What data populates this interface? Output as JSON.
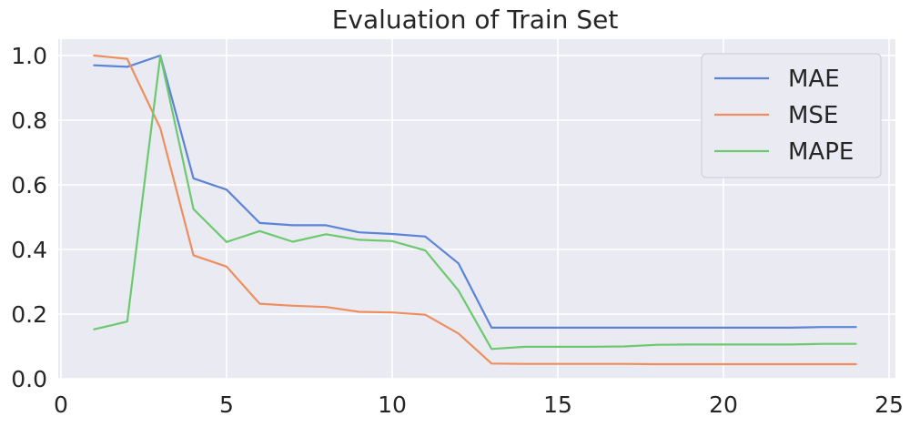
{
  "chart_data": {
    "type": "line",
    "title": "Evaluation of Train Set",
    "xlabel": "",
    "ylabel": "",
    "xlim": [
      0,
      25
    ],
    "ylim": [
      0,
      1.05
    ],
    "xticks": [
      0,
      5,
      10,
      15,
      20,
      25
    ],
    "yticks": [
      0.0,
      0.2,
      0.4,
      0.6,
      0.8,
      1.0
    ],
    "xtick_labels": [
      "0",
      "5",
      "10",
      "15",
      "20",
      "25"
    ],
    "ytick_labels": [
      "0.0",
      "0.2",
      "0.4",
      "0.6",
      "0.8",
      "1.0"
    ],
    "grid": true,
    "legend_position": "top-right",
    "x": [
      1,
      2,
      3,
      4,
      5,
      6,
      7,
      8,
      9,
      10,
      11,
      12,
      13,
      14,
      15,
      16,
      17,
      18,
      19,
      20,
      21,
      22,
      23,
      24
    ],
    "series": [
      {
        "name": "MAE",
        "color": "#5b83d6",
        "values": [
          0.97,
          0.965,
          1.0,
          0.62,
          0.585,
          0.482,
          0.475,
          0.475,
          0.453,
          0.448,
          0.44,
          0.357,
          0.158,
          0.158,
          0.158,
          0.158,
          0.158,
          0.158,
          0.158,
          0.158,
          0.158,
          0.158,
          0.16,
          0.16
        ]
      },
      {
        "name": "MSE",
        "color": "#ee8e5f",
        "values": [
          1.0,
          0.99,
          0.775,
          0.382,
          0.347,
          0.232,
          0.226,
          0.222,
          0.207,
          0.205,
          0.198,
          0.14,
          0.047,
          0.046,
          0.046,
          0.046,
          0.046,
          0.045,
          0.045,
          0.045,
          0.045,
          0.045,
          0.045,
          0.045
        ]
      },
      {
        "name": "MAPE",
        "color": "#6cc96e",
        "values": [
          0.153,
          0.177,
          1.0,
          0.525,
          0.423,
          0.457,
          0.424,
          0.447,
          0.43,
          0.426,
          0.397,
          0.273,
          0.092,
          0.099,
          0.099,
          0.099,
          0.1,
          0.105,
          0.106,
          0.106,
          0.106,
          0.106,
          0.108,
          0.108
        ]
      }
    ]
  }
}
